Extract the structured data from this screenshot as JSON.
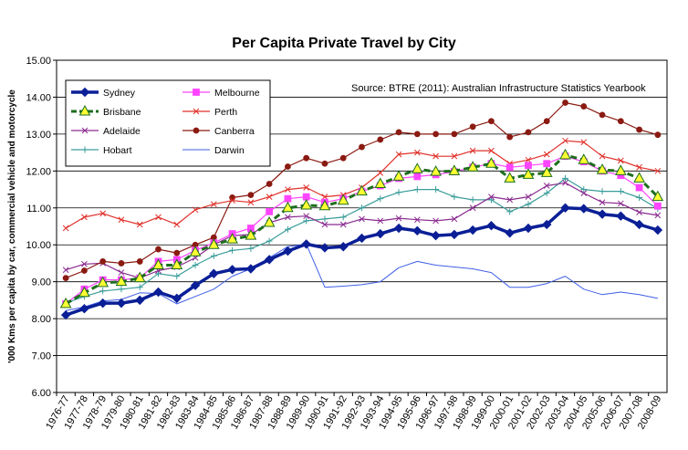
{
  "chart_data": {
    "type": "line",
    "title": "Per Capita Private Travel by City",
    "ylabel": "'000 Kms per capita by car, commercial vehicle and motorcycle",
    "xlabel": "",
    "source": "Source: BTRE (2011): Australian Infrastructure Statistics Yearbook",
    "ylim": [
      6.0,
      15.0
    ],
    "y_ticks": [
      "6.00",
      "7.00",
      "8.00",
      "9.00",
      "10.00",
      "11.00",
      "12.00",
      "13.00",
      "14.00",
      "15.00"
    ],
    "grid": true,
    "legend_position": "top-left",
    "categories": [
      "1976-77",
      "1977-78",
      "1978-79",
      "1979-80",
      "1980-81",
      "1981-82",
      "1982-83",
      "1983-84",
      "1984-85",
      "1985-86",
      "1986-87",
      "1987-88",
      "1988-89",
      "1989-90",
      "1990-91",
      "1991-92",
      "1992-93",
      "1993-94",
      "1994-95",
      "1995-96",
      "1996-97",
      "1997-98",
      "1998-99",
      "1999-00",
      "2000-01",
      "2001-02",
      "2002-03",
      "2003-04",
      "2004-05",
      "2005-06",
      "2006-07",
      "2007-08",
      "2008-09"
    ],
    "series": [
      {
        "name": "Sydney",
        "color": "#0a1f96",
        "marker": "diamond",
        "values": [
          8.1,
          8.27,
          8.42,
          8.42,
          8.5,
          8.72,
          8.55,
          8.9,
          9.22,
          9.33,
          9.35,
          9.6,
          9.83,
          10.02,
          9.92,
          9.95,
          10.18,
          10.3,
          10.45,
          10.38,
          10.25,
          10.28,
          10.4,
          10.52,
          10.32,
          10.45,
          10.55,
          11.0,
          10.98,
          10.83,
          10.78,
          10.55,
          10.4
        ]
      },
      {
        "name": "Melbourne",
        "color": "#ff44ff",
        "marker": "square",
        "values": [
          8.4,
          8.8,
          9.05,
          9.05,
          9.1,
          9.55,
          9.6,
          9.85,
          10.05,
          10.3,
          10.45,
          10.9,
          11.25,
          11.3,
          11.15,
          11.25,
          11.45,
          11.6,
          11.8,
          11.85,
          11.9,
          11.98,
          12.1,
          12.2,
          12.1,
          12.15,
          12.2,
          12.4,
          12.25,
          12.0,
          11.88,
          11.55,
          11.05
        ]
      },
      {
        "name": "Brisbane",
        "color": "#1d6e1d",
        "marker": "triangle",
        "values": [
          8.4,
          8.7,
          8.97,
          9.0,
          9.1,
          9.45,
          9.45,
          9.8,
          10.0,
          10.15,
          10.25,
          10.6,
          11.0,
          11.07,
          11.05,
          11.2,
          11.45,
          11.65,
          11.85,
          12.05,
          11.98,
          12.0,
          12.1,
          12.2,
          11.8,
          11.9,
          11.95,
          12.43,
          12.3,
          12.03,
          12.0,
          11.8,
          11.3
        ]
      },
      {
        "name": "Perth",
        "color": "#e0302a",
        "marker": "x",
        "values": [
          10.45,
          10.75,
          10.85,
          10.68,
          10.55,
          10.75,
          10.55,
          10.95,
          11.1,
          11.2,
          11.15,
          11.3,
          11.5,
          11.55,
          11.3,
          11.35,
          11.55,
          11.95,
          12.45,
          12.5,
          12.4,
          12.4,
          12.55,
          12.55,
          12.2,
          12.3,
          12.45,
          12.82,
          12.78,
          12.4,
          12.28,
          12.1,
          12.0
        ]
      },
      {
        "name": "Canberra",
        "color": "#8a1a12",
        "marker": "circle",
        "values": [
          9.1,
          9.3,
          9.55,
          9.5,
          9.55,
          9.88,
          9.78,
          10.0,
          10.2,
          11.28,
          11.35,
          11.65,
          12.12,
          12.35,
          12.2,
          12.35,
          12.65,
          12.85,
          13.05,
          13.0,
          13.0,
          13.0,
          13.2,
          13.35,
          12.92,
          13.05,
          13.35,
          13.85,
          13.75,
          13.52,
          13.35,
          13.12,
          12.98
        ]
      },
      {
        "name": "Adelaide",
        "color": "#8a2b8f",
        "marker": "x",
        "values": [
          9.32,
          9.48,
          9.5,
          9.25,
          9.1,
          9.3,
          9.4,
          9.65,
          10.0,
          10.25,
          10.28,
          10.6,
          10.75,
          10.78,
          10.55,
          10.55,
          10.7,
          10.65,
          10.72,
          10.68,
          10.65,
          10.7,
          11.0,
          11.3,
          11.22,
          11.3,
          11.6,
          11.68,
          11.4,
          11.15,
          11.12,
          10.88,
          10.8
        ]
      },
      {
        "name": "Hobart",
        "color": "#3a9d9a",
        "marker": "plus",
        "values": [
          8.42,
          8.6,
          8.75,
          8.8,
          8.85,
          9.22,
          9.15,
          9.45,
          9.7,
          9.85,
          9.9,
          10.1,
          10.42,
          10.65,
          10.7,
          10.75,
          11.0,
          11.25,
          11.42,
          11.5,
          11.5,
          11.3,
          11.22,
          11.22,
          10.9,
          11.1,
          11.4,
          11.8,
          11.5,
          11.45,
          11.45,
          11.28,
          10.98
        ]
      },
      {
        "name": "Darwin",
        "color": "#3f5ee6",
        "marker": "none",
        "values": [
          8.22,
          8.32,
          8.48,
          8.52,
          8.7,
          8.68,
          8.4,
          8.6,
          8.8,
          9.15,
          9.35,
          9.65,
          9.95,
          10.02,
          8.85,
          8.88,
          8.92,
          9.0,
          9.38,
          9.55,
          9.45,
          9.4,
          9.35,
          9.25,
          8.85,
          8.85,
          8.95,
          9.15,
          8.8,
          8.65,
          8.72,
          8.65,
          8.55
        ]
      }
    ],
    "legend_order": [
      "Sydney",
      "Melbourne",
      "Brisbane",
      "Perth",
      "Adelaide",
      "Canberra",
      "Hobart",
      "Darwin"
    ]
  }
}
